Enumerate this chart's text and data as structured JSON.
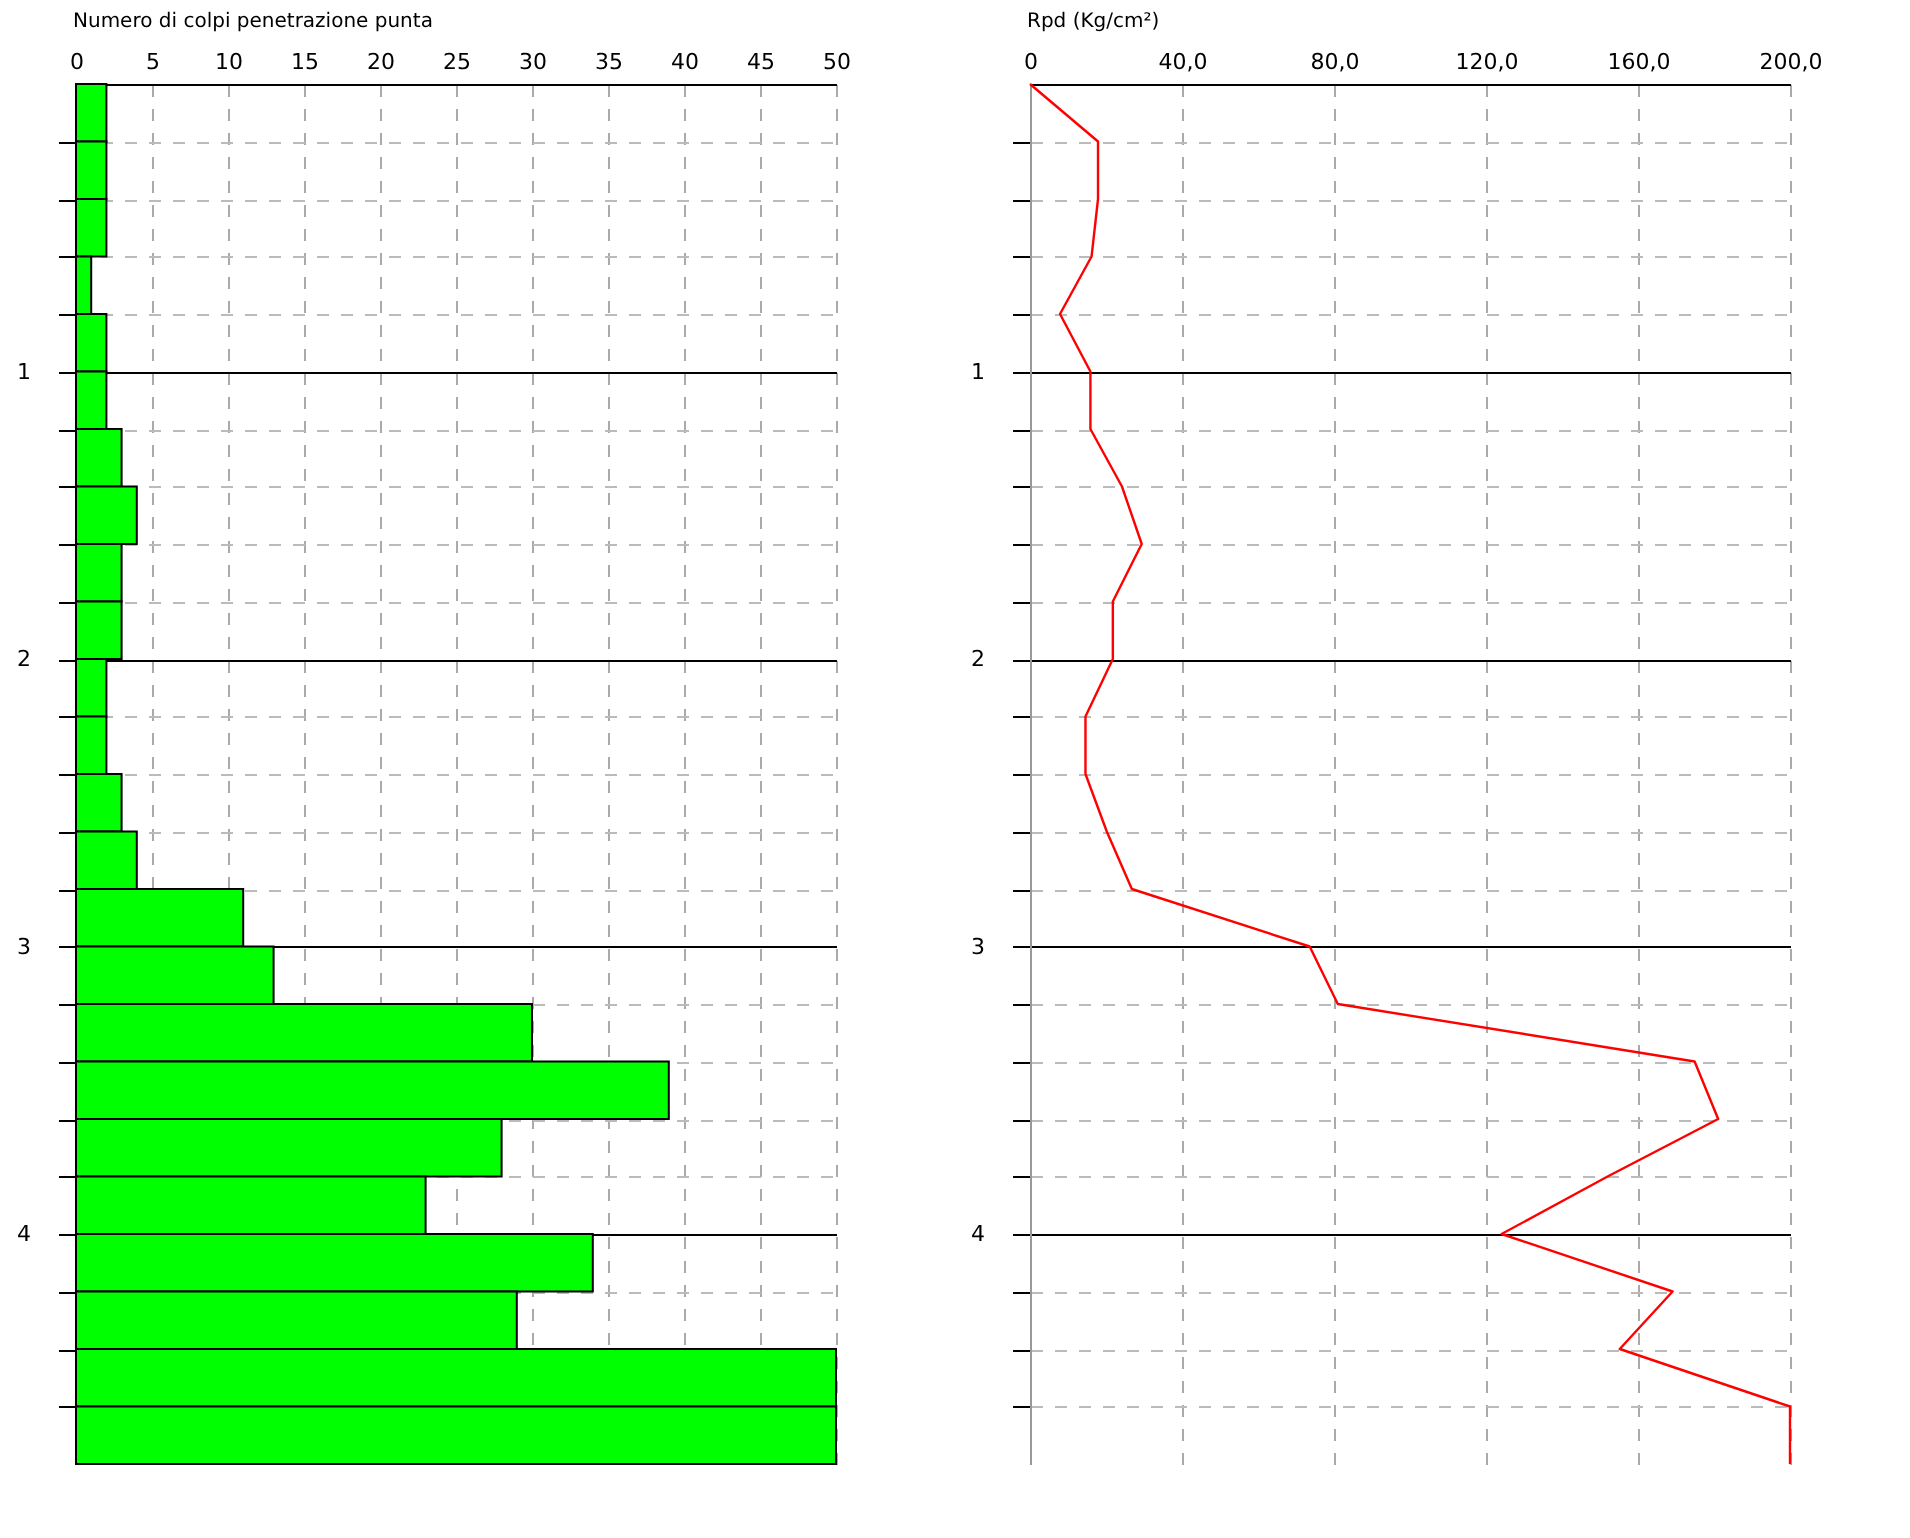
{
  "chart_data": [
    {
      "type": "histogram",
      "orientation": "horizontal",
      "xlabel": "Numero di colpi penetrazione punta",
      "color": "#00ff00",
      "bins": [
        0,
        0.2,
        0.4,
        0.6,
        0.8,
        1.0,
        1.2,
        1.4,
        1.6,
        1.8,
        2.0,
        2.2,
        2.4,
        2.6,
        2.8,
        3.0,
        3.2,
        3.4,
        3.6,
        3.8,
        4.0,
        4.2,
        4.4,
        4.6,
        4.8
      ],
      "values": [
        2,
        2,
        2,
        1,
        2,
        2,
        3,
        4,
        3,
        3,
        2,
        2,
        3,
        4,
        11,
        13,
        30,
        39,
        28,
        23,
        34,
        29,
        50,
        50
      ],
      "xlim": [
        0,
        50
      ],
      "xticks": [
        0,
        5,
        10,
        15,
        20,
        25,
        30,
        35,
        40,
        45,
        50
      ],
      "ylim": [
        4.8,
        0
      ],
      "yticks": [
        {
          "value": 0.2,
          "label": null
        },
        {
          "value": 0.4,
          "label": null
        },
        {
          "value": 0.6,
          "label": null
        },
        {
          "value": 0.8,
          "label": null
        },
        1,
        {
          "value": 1.2,
          "label": null
        },
        {
          "value": 1.4,
          "label": null
        },
        {
          "value": 1.6,
          "label": null
        },
        {
          "value": 1.8,
          "label": null
        },
        2,
        {
          "value": 2.2,
          "label": null
        },
        {
          "value": 2.4,
          "label": null
        },
        {
          "value": 2.6,
          "label": null
        },
        {
          "value": 2.8,
          "label": null
        },
        3,
        {
          "value": 3.2,
          "label": null
        },
        {
          "value": 3.4,
          "label": null
        },
        {
          "value": 3.6,
          "label": null
        },
        {
          "value": 3.8,
          "label": null
        },
        4,
        {
          "value": 4.2,
          "label": null
        },
        {
          "value": 4.4,
          "label": null
        },
        {
          "value": 4.6,
          "label": null
        }
      ],
      "grid": true
    },
    {
      "type": "line",
      "xlabel": "Rpd (Kg/cm²)",
      "marker": "none",
      "x": [
        0,
        17.9,
        17.9,
        16.2,
        7.9,
        15.9,
        15.9,
        24.2,
        29.4,
        21.8,
        21.8,
        14.6,
        14.6,
        20.2,
        26.8,
        73.6,
        81.0,
        174.9,
        181.1,
        152.0,
        124.1,
        169.1,
        155.2,
        200.0,
        200.0
      ],
      "series": [
        {
          "color": "#ff0000",
          "values": [
            0,
            0.2,
            0.4,
            0.6,
            0.8,
            1.0,
            1.2,
            1.4,
            1.6,
            1.8,
            2.0,
            2.2,
            2.4,
            2.6,
            2.8,
            3.0,
            3.2,
            3.4,
            3.6,
            3.8,
            4.0,
            4.2,
            4.4,
            4.6,
            4.8
          ]
        }
      ],
      "xlim": [
        0,
        200
      ],
      "xticks": [
        0,
        {
          "value": 40,
          "label": "40,0"
        },
        {
          "value": 80,
          "label": "80,0"
        },
        {
          "value": 120,
          "label": "120,0"
        },
        {
          "value": 160,
          "label": "160,0"
        },
        {
          "value": 200,
          "label": "200,0"
        }
      ],
      "ylim": [
        4.8,
        0
      ],
      "yticks": [
        {
          "value": 0.2,
          "label": null
        },
        {
          "value": 0.4,
          "label": null
        },
        {
          "value": 0.6,
          "label": null
        },
        {
          "value": 0.8,
          "label": null
        },
        1,
        {
          "value": 1.2,
          "label": null
        },
        {
          "value": 1.4,
          "label": null
        },
        {
          "value": 1.6,
          "label": null
        },
        {
          "value": 1.8,
          "label": null
        },
        2,
        {
          "value": 2.2,
          "label": null
        },
        {
          "value": 2.4,
          "label": null
        },
        {
          "value": 2.6,
          "label": null
        },
        {
          "value": 2.8,
          "label": null
        },
        3,
        {
          "value": 3.2,
          "label": null
        },
        {
          "value": 3.4,
          "label": null
        },
        {
          "value": 3.6,
          "label": null
        },
        {
          "value": 3.8,
          "label": null
        },
        4,
        {
          "value": 4.2,
          "label": null
        },
        {
          "value": 4.4,
          "label": null
        },
        {
          "value": 4.6,
          "label": null
        }
      ],
      "grid": true
    }
  ]
}
